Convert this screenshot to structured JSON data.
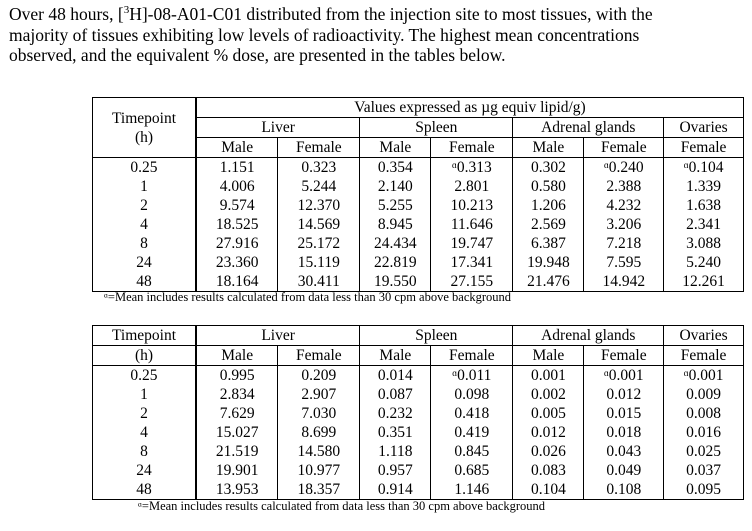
{
  "intro": {
    "line1_pre": "Over 48 hours, [",
    "line1_sup": "3",
    "line1_post": "H]-08-A01-C01 distributed from the injection site to most tissues, with the",
    "line2": "majority of tissues exhibiting low levels of radioactivity.  The highest mean concentrations",
    "line3": "observed, and the equivalent % dose, are presented in the tables below."
  },
  "table1": {
    "caption": "Values expressed as µg equiv lipid/g)",
    "timepoint_label": "Timepoint",
    "timepoint_unit": "(h)",
    "groups": [
      "Liver",
      "Spleen",
      "Adrenal glands",
      "Ovaries"
    ],
    "sexes": [
      "Male",
      "Female",
      "Male",
      "Female",
      "Male",
      "Female",
      "Female"
    ],
    "rows": [
      [
        "0.25",
        "1.151",
        "0.323",
        "0.354",
        "ᵅ0.313",
        "0.302",
        "ᵅ0.240",
        "ᵅ0.104"
      ],
      [
        "1",
        "4.006",
        "5.244",
        "2.140",
        "2.801",
        "0.580",
        "2.388",
        "1.339"
      ],
      [
        "2",
        "9.574",
        "12.370",
        "5.255",
        "10.213",
        "1.206",
        "4.232",
        "1.638"
      ],
      [
        "4",
        "18.525",
        "14.569",
        "8.945",
        "11.646",
        "2.569",
        "3.206",
        "2.341"
      ],
      [
        "8",
        "27.916",
        "25.172",
        "24.434",
        "19.747",
        "6.387",
        "7.218",
        "3.088"
      ],
      [
        "24",
        "23.360",
        "15.119",
        "22.819",
        "17.341",
        "19.948",
        "7.595",
        "5.240"
      ],
      [
        "48",
        "18.164",
        "30.411",
        "19.550",
        "27.155",
        "21.476",
        "14.942",
        "12.261"
      ]
    ],
    "footnote": "ᵅ=Mean includes results calculated from data less than 30 cpm above background"
  },
  "table2": {
    "timepoint_label": "Timepoint",
    "timepoint_unit": "(h)",
    "groups": [
      "Liver",
      "Spleen",
      "Adrenal glands",
      "Ovaries"
    ],
    "sexes": [
      "Male",
      "Female",
      "Male",
      "Female",
      "Male",
      "Female",
      "Female"
    ],
    "rows": [
      [
        "0.25",
        "0.995",
        "0.209",
        "0.014",
        "ᵅ0.011",
        "0.001",
        "ᵅ0.001",
        "ᵅ0.001"
      ],
      [
        "1",
        "2.834",
        "2.907",
        "0.087",
        "0.098",
        "0.002",
        "0.012",
        "0.009"
      ],
      [
        "2",
        "7.629",
        "7.030",
        "0.232",
        "0.418",
        "0.005",
        "0.015",
        "0.008"
      ],
      [
        "4",
        "15.027",
        "8.699",
        "0.351",
        "0.419",
        "0.012",
        "0.018",
        "0.016"
      ],
      [
        "8",
        "21.519",
        "14.580",
        "1.118",
        "0.845",
        "0.026",
        "0.043",
        "0.025"
      ],
      [
        "24",
        "19.901",
        "10.977",
        "0.957",
        "0.685",
        "0.083",
        "0.049",
        "0.037"
      ],
      [
        "48",
        "13.953",
        "18.357",
        "0.914",
        "1.146",
        "0.104",
        "0.108",
        "0.095"
      ]
    ],
    "footnote": "ᵅ=Mean includes results calculated from data less than 30 cpm above background"
  }
}
